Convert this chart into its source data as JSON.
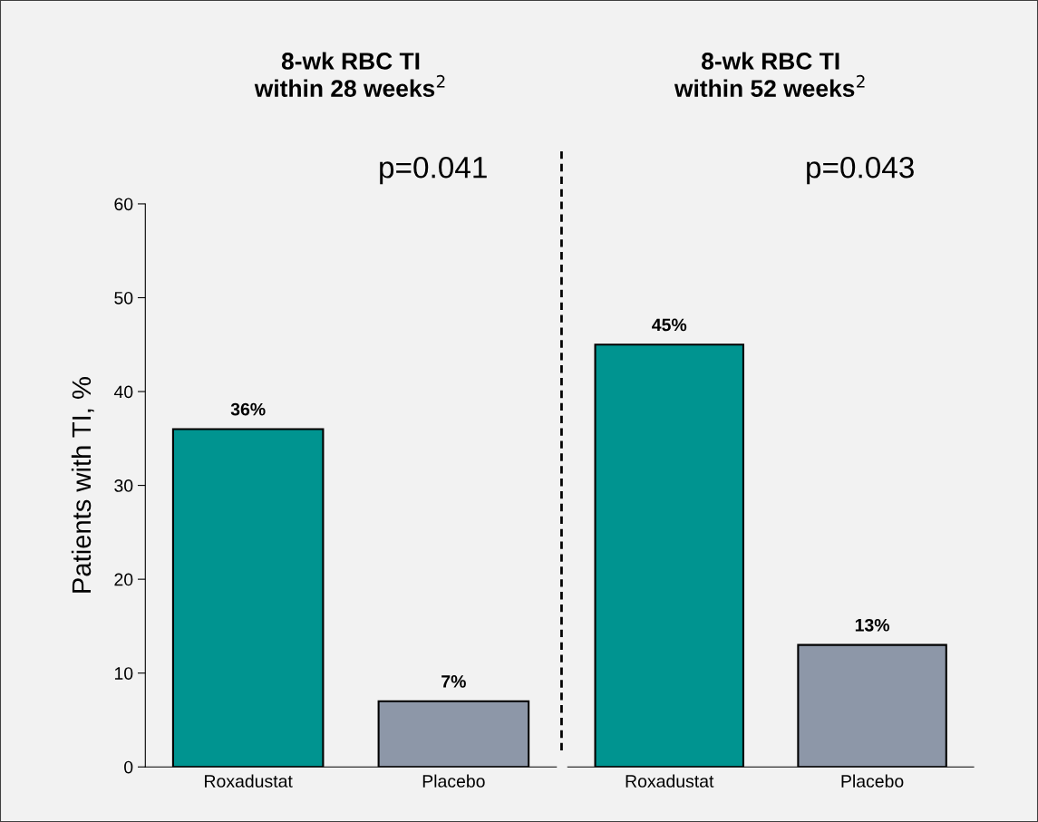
{
  "chart_data": [
    {
      "type": "bar",
      "title": "8-wk RBC TI\nwithin 28 weeks$^{2}$",
      "ylabel": "Patients with TI, %",
      "categories": [
        "Roxadustat",
        "Placebo"
      ],
      "values": [
        36,
        7
      ],
      "colors": [
        "#009490",
        "#8d97a8"
      ],
      "value_labels": [
        "36%",
        "7%"
      ],
      "ylim": [
        0,
        60
      ],
      "yticks": [
        0,
        10,
        20,
        30,
        40,
        50,
        60
      ],
      "annotations": [
        "p=0.041"
      ],
      "grid": false,
      "legend": false
    },
    {
      "type": "bar",
      "title": "8-wk RBC TI\nwithin 52 weeks$^{2}$",
      "categories": [
        "Roxadustat",
        "Placebo"
      ],
      "values": [
        45,
        13
      ],
      "colors": [
        "#009490",
        "#8d97a8"
      ],
      "value_labels": [
        "45%",
        "13%"
      ],
      "ylim": [
        0,
        60
      ],
      "tick_labels": "x",
      "annotations": [
        "p=0.043"
      ],
      "grid": false,
      "legend": false
    }
  ]
}
